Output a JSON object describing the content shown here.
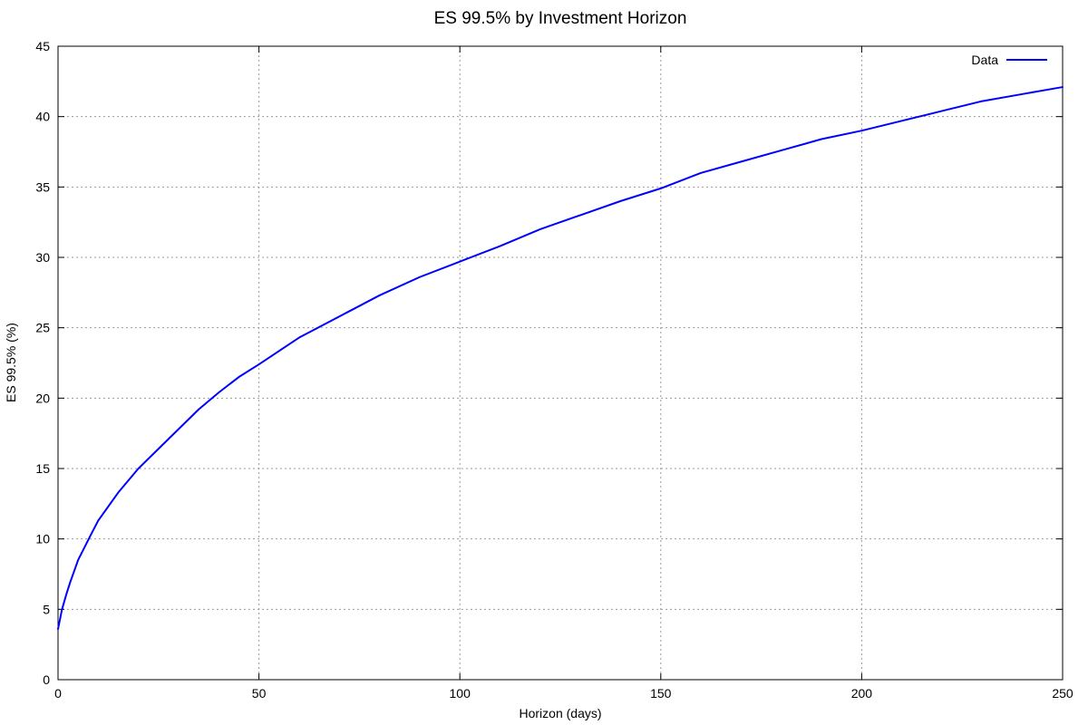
{
  "chart_data": {
    "type": "line",
    "title": "ES 99.5% by Investment Horizon",
    "xlabel": "Horizon (days)",
    "ylabel": "ES 99.5% (%)",
    "xlim": [
      0,
      250
    ],
    "ylim": [
      0,
      45
    ],
    "xticks": [
      0,
      50,
      100,
      150,
      200,
      250
    ],
    "yticks": [
      0,
      5,
      10,
      15,
      20,
      25,
      30,
      35,
      40,
      45
    ],
    "grid": true,
    "legend_position": "top-right",
    "series": [
      {
        "name": "Data",
        "color": "#0000ff",
        "x": [
          0,
          1,
          2,
          3,
          5,
          8,
          10,
          15,
          20,
          25,
          30,
          35,
          40,
          45,
          50,
          60,
          70,
          80,
          90,
          100,
          110,
          120,
          130,
          140,
          150,
          160,
          170,
          180,
          190,
          200,
          210,
          220,
          230,
          240,
          250
        ],
        "y": [
          3.6,
          5.0,
          6.0,
          6.9,
          8.5,
          10.2,
          11.3,
          13.3,
          15.0,
          16.4,
          17.8,
          19.2,
          20.4,
          21.5,
          22.4,
          24.3,
          25.8,
          27.3,
          28.6,
          29.7,
          30.8,
          32.0,
          33.0,
          34.0,
          34.9,
          36.0,
          36.8,
          37.6,
          38.4,
          39.0,
          39.7,
          40.4,
          41.1,
          41.6,
          42.1
        ]
      }
    ]
  }
}
